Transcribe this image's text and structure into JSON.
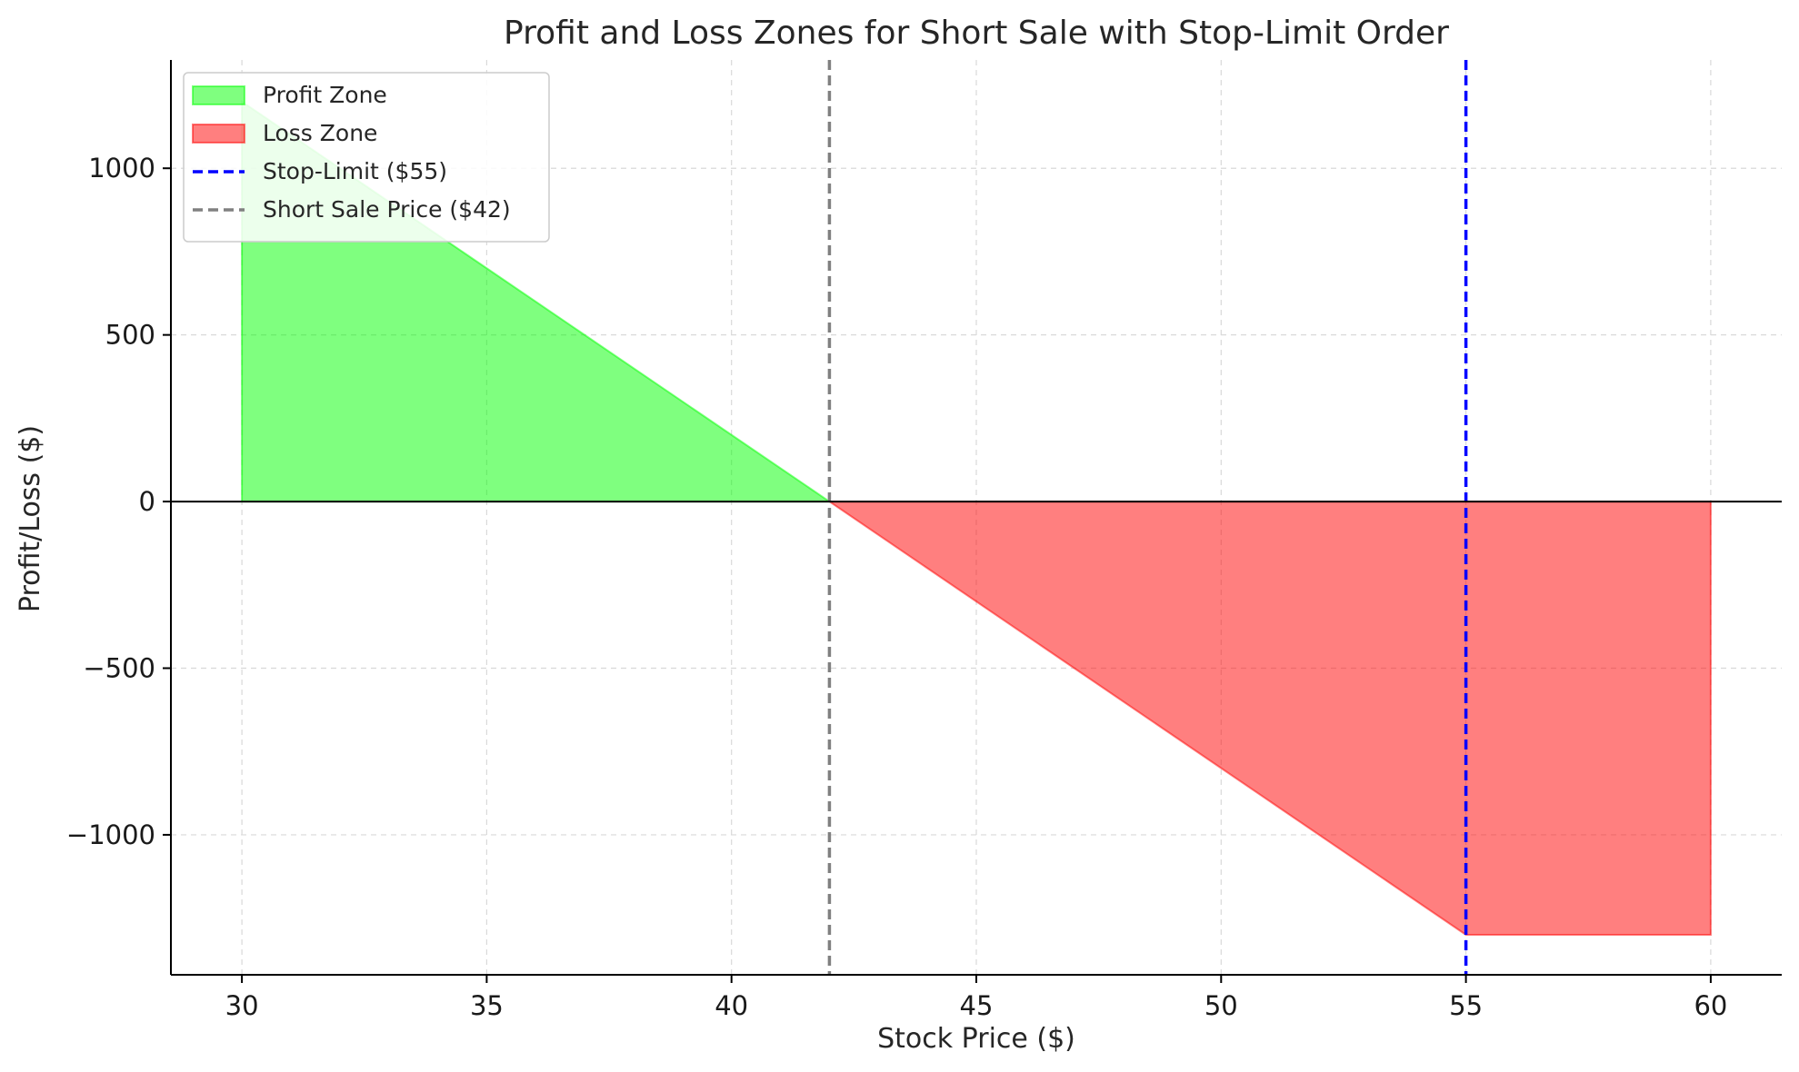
{
  "chart_data": {
    "type": "area",
    "title": "Profit and Loss Zones for Short Sale with Stop-Limit Order",
    "xlabel": "Stock Price ($)",
    "ylabel": "Profit/Loss ($)",
    "xlim": [
      28.55,
      61.45
    ],
    "ylim": [
      -1420,
      1325
    ],
    "xticks": [
      30,
      35,
      40,
      45,
      50,
      55,
      60
    ],
    "yticks": [
      -1000,
      -500,
      0,
      500,
      1000
    ],
    "ytick_labels": [
      "−1000",
      "−500",
      "0",
      "500",
      "1000"
    ],
    "grid": true,
    "legend_position": "top-left",
    "series": [
      {
        "name": "Profit Zone",
        "kind": "fill",
        "color": "#00ff00",
        "opacity": 0.5,
        "points": [
          [
            30,
            1200
          ],
          [
            42,
            0
          ]
        ]
      },
      {
        "name": "Loss Zone",
        "kind": "fill",
        "color": "#ff0000",
        "opacity": 0.5,
        "points": [
          [
            42,
            0
          ],
          [
            55,
            -1300
          ],
          [
            60,
            -1300
          ]
        ]
      }
    ],
    "reference_lines": [
      {
        "name": "Stop-Limit ($55)",
        "orientation": "vertical",
        "x": 55,
        "color": "#0000ff",
        "style": "dashed"
      },
      {
        "name": "Short Sale Price ($42)",
        "orientation": "vertical",
        "x": 42,
        "color": "#808080",
        "style": "dashed"
      },
      {
        "orientation": "horizontal",
        "y": 0,
        "color": "#000000",
        "style": "solid"
      }
    ]
  }
}
